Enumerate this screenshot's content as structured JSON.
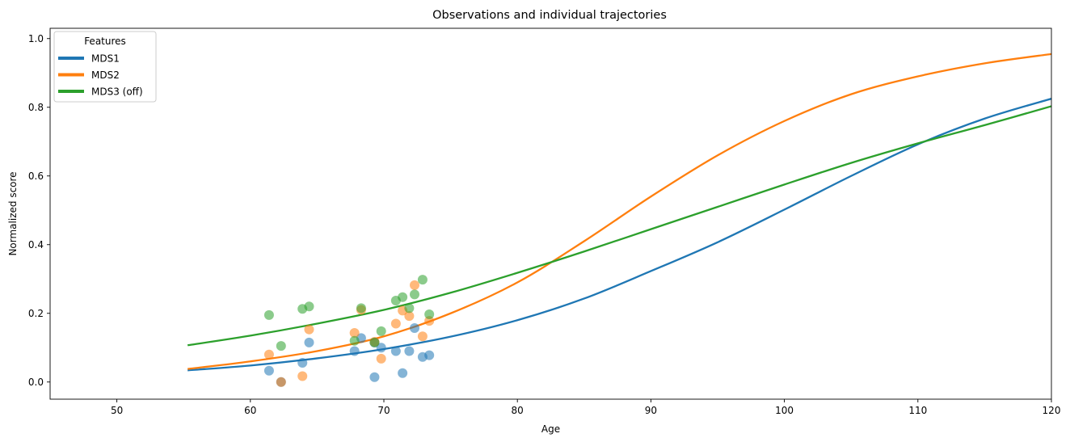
{
  "chart_data": {
    "type": "scatter",
    "title": "Observations and individual trajectories",
    "xlabel": "Age",
    "ylabel": "Normalized score",
    "xlim": [
      45,
      120
    ],
    "ylim": [
      -0.05,
      1.03
    ],
    "xticks": [
      50,
      60,
      70,
      80,
      90,
      100,
      110,
      120
    ],
    "yticks": [
      0.0,
      0.2,
      0.4,
      0.6,
      0.8,
      1.0
    ],
    "xtick_labels": [
      "50",
      "60",
      "70",
      "80",
      "90",
      "100",
      "110",
      "120"
    ],
    "ytick_labels": [
      "0.0",
      "0.2",
      "0.4",
      "0.6",
      "0.8",
      "1.0"
    ],
    "grid": false,
    "legend": {
      "title": "Features",
      "position": "top-left",
      "entries": [
        "MDS1",
        "MDS2",
        "MDS3 (off)"
      ]
    },
    "series": [
      {
        "name": "MDS1",
        "color": "#1f77b4",
        "curve": {
          "x": [
            55.3,
            60,
            65,
            70,
            75,
            80,
            85,
            90,
            95,
            100,
            105,
            110,
            115,
            120
          ],
          "y": [
            0.034,
            0.048,
            0.069,
            0.096,
            0.132,
            0.18,
            0.243,
            0.323,
            0.407,
            0.502,
            0.6,
            0.692,
            0.767,
            0.825
          ]
        },
        "points": [
          [
            61.4,
            0.033
          ],
          [
            62.3,
            0.0
          ],
          [
            63.9,
            0.056
          ],
          [
            64.4,
            0.115
          ],
          [
            67.8,
            0.09
          ],
          [
            68.3,
            0.128
          ],
          [
            69.3,
            0.014
          ],
          [
            69.3,
            0.115
          ],
          [
            69.8,
            0.1
          ],
          [
            70.9,
            0.09
          ],
          [
            71.4,
            0.026
          ],
          [
            71.9,
            0.09
          ],
          [
            72.3,
            0.157
          ],
          [
            72.9,
            0.073
          ],
          [
            73.4,
            0.078
          ]
        ]
      },
      {
        "name": "MDS2",
        "color": "#ff7f0e",
        "curve": {
          "x": [
            55.3,
            60,
            65,
            70,
            75,
            80,
            85,
            90,
            95,
            100,
            105,
            110,
            115,
            120
          ],
          "y": [
            0.038,
            0.06,
            0.09,
            0.133,
            0.2,
            0.29,
            0.41,
            0.54,
            0.66,
            0.76,
            0.838,
            0.89,
            0.928,
            0.955
          ]
        },
        "points": [
          [
            61.4,
            0.08
          ],
          [
            62.3,
            0.0
          ],
          [
            63.9,
            0.017
          ],
          [
            64.4,
            0.153
          ],
          [
            67.8,
            0.143
          ],
          [
            68.3,
            0.21
          ],
          [
            69.3,
            0.117
          ],
          [
            69.8,
            0.068
          ],
          [
            70.9,
            0.17
          ],
          [
            71.4,
            0.208
          ],
          [
            71.9,
            0.192
          ],
          [
            72.3,
            0.282
          ],
          [
            72.9,
            0.133
          ],
          [
            73.4,
            0.178
          ]
        ]
      },
      {
        "name": "MDS3 (off)",
        "color": "#2ca02c",
        "curve": {
          "x": [
            55.3,
            60,
            65,
            70,
            75,
            80,
            85,
            90,
            95,
            100,
            105,
            110,
            115,
            120
          ],
          "y": [
            0.107,
            0.135,
            0.17,
            0.21,
            0.26,
            0.318,
            0.38,
            0.445,
            0.51,
            0.575,
            0.638,
            0.695,
            0.748,
            0.803
          ]
        },
        "points": [
          [
            61.4,
            0.195
          ],
          [
            62.3,
            0.105
          ],
          [
            63.9,
            0.213
          ],
          [
            64.4,
            0.22
          ],
          [
            67.8,
            0.12
          ],
          [
            68.3,
            0.215
          ],
          [
            69.3,
            0.115
          ],
          [
            69.8,
            0.148
          ],
          [
            70.9,
            0.237
          ],
          [
            71.4,
            0.247
          ],
          [
            71.9,
            0.215
          ],
          [
            72.3,
            0.255
          ],
          [
            72.9,
            0.298
          ],
          [
            73.4,
            0.197
          ]
        ]
      }
    ]
  }
}
